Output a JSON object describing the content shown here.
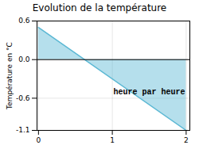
{
  "chart_data": {
    "type": "area",
    "title": "Evolution de la température",
    "x": [
      0,
      2
    ],
    "values": [
      0.5,
      -1.1
    ],
    "color": "#5bb8d4",
    "xlabel": null,
    "ylabel": "Température en °C",
    "xlim": [
      -0.02,
      2.05
    ],
    "xticks": [
      0,
      1,
      2
    ],
    "ylim": [
      -1.1,
      0.6
    ],
    "yticks": [
      -1.1,
      -0.6,
      {
        "value": 0.0,
        "label": "0.0"
      },
      0.6
    ],
    "grid": true,
    "annotations": [
      {
        "text": "heure par heure",
        "x": 1.5,
        "y": -0.45
      }
    ]
  }
}
